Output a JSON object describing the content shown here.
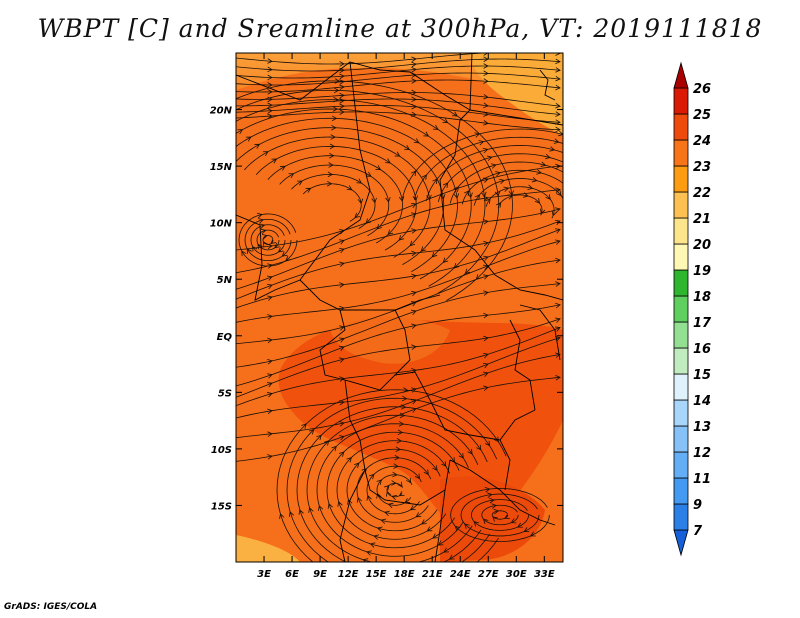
{
  "title": "WBPT [C] and Sreamline at 300hPa, VT: 2019111818",
  "credit": "GrADS: IGES/COLA",
  "map": {
    "lon_labels": [
      "3E",
      "6E",
      "9E",
      "12E",
      "15E",
      "18E",
      "21E",
      "24E",
      "27E",
      "30E",
      "33E"
    ],
    "lat_labels": [
      "20N",
      "15N",
      "10N",
      "5N",
      "EQ",
      "5S",
      "10S",
      "15S"
    ],
    "lon_range": [
      0,
      35
    ],
    "lat_range": [
      -20,
      25
    ]
  },
  "colorbar": {
    "levels": [
      "7",
      "9",
      "11",
      "12",
      "13",
      "14",
      "15",
      "16",
      "17",
      "18",
      "19",
      "20",
      "21",
      "22",
      "23",
      "24",
      "25",
      "26"
    ],
    "colors": [
      "#1560d8",
      "#2b80e8",
      "#4499f0",
      "#63aef5",
      "#86c2f7",
      "#a8d6fa",
      "#dff2fc",
      "#c0ecc0",
      "#93e093",
      "#5fd05f",
      "#2fb62f",
      "#fff7b4",
      "#fde58c",
      "#fdc153",
      "#fb9c12",
      "#f87418",
      "#ef4a0d",
      "#da1a05",
      "#a90000"
    ]
  }
}
